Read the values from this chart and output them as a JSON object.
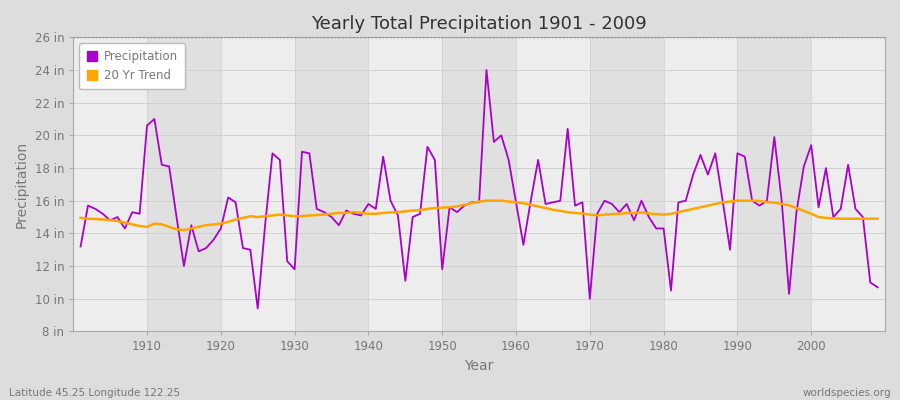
{
  "title": "Yearly Total Precipitation 1901 - 2009",
  "xlabel": "Year",
  "ylabel": "Precipitation",
  "start_year": 1901,
  "end_year": 2009,
  "ylim": [
    8,
    26
  ],
  "yticks": [
    8,
    10,
    12,
    14,
    16,
    18,
    20,
    22,
    24,
    26
  ],
  "ytick_labels": [
    "8 in",
    "10 in",
    "12 in",
    "14 in",
    "16 in",
    "18 in",
    "20 in",
    "22 in",
    "24 in",
    "26 in"
  ],
  "precipitation_color": "#AA00CC",
  "trend_color": "#FFA500",
  "background_color": "#DDDDDD",
  "plot_bg_color": "#E0E0E0",
  "grid_color_x": "#FFFFFF",
  "grid_color_y": "#CCCCCC",
  "title_color": "#333333",
  "axis_color": "#777777",
  "tick_color": "#777777",
  "precipitation_lw": 1.3,
  "trend_lw": 1.8,
  "footer_left": "Latitude 45.25 Longitude 122.25",
  "footer_right": "worldspecies.org",
  "xlim_left": 1900,
  "xlim_right": 2010,
  "precipitation": [
    13.2,
    15.7,
    15.5,
    15.2,
    14.8,
    15.0,
    14.3,
    15.3,
    15.2,
    20.6,
    21.0,
    18.2,
    18.1,
    15.0,
    12.0,
    14.5,
    12.9,
    13.1,
    13.6,
    14.3,
    16.2,
    15.9,
    13.1,
    13.0,
    9.4,
    14.5,
    18.9,
    18.5,
    12.3,
    11.8,
    19.0,
    18.9,
    15.5,
    15.3,
    15.0,
    14.5,
    15.4,
    15.2,
    15.1,
    15.8,
    15.5,
    18.7,
    16.0,
    15.1,
    11.1,
    15.0,
    15.2,
    19.3,
    18.5,
    11.8,
    15.6,
    15.3,
    15.7,
    15.9,
    15.9,
    24.0,
    19.6,
    20.0,
    18.5,
    15.9,
    13.3,
    16.0,
    18.5,
    15.8,
    15.9,
    16.0,
    20.4,
    15.7,
    15.9,
    10.0,
    15.2,
    16.0,
    15.8,
    15.3,
    15.8,
    14.8,
    16.0,
    15.0,
    14.3,
    14.3,
    10.5,
    15.9,
    16.0,
    17.6,
    18.8,
    17.6,
    18.9,
    16.0,
    13.0,
    18.9,
    18.7,
    16.0,
    15.7,
    16.0,
    19.9,
    16.0,
    10.3,
    15.3,
    18.1,
    19.4,
    15.6,
    18.0,
    15.0,
    15.5,
    18.2,
    15.5,
    15.0,
    11.0,
    10.7
  ],
  "trend": [
    14.95,
    14.9,
    14.88,
    14.85,
    14.82,
    14.75,
    14.65,
    14.55,
    14.45,
    14.4,
    14.6,
    14.55,
    14.4,
    14.25,
    14.2,
    14.3,
    14.4,
    14.5,
    14.55,
    14.6,
    14.7,
    14.85,
    14.95,
    15.05,
    15.0,
    15.05,
    15.1,
    15.15,
    15.1,
    15.05,
    15.05,
    15.1,
    15.12,
    15.15,
    15.2,
    15.25,
    15.25,
    15.3,
    15.25,
    15.2,
    15.2,
    15.25,
    15.28,
    15.3,
    15.35,
    15.4,
    15.42,
    15.5,
    15.55,
    15.58,
    15.6,
    15.65,
    15.75,
    15.85,
    15.95,
    16.0,
    16.0,
    16.0,
    15.95,
    15.9,
    15.85,
    15.75,
    15.65,
    15.55,
    15.45,
    15.38,
    15.3,
    15.25,
    15.22,
    15.15,
    15.1,
    15.15,
    15.18,
    15.2,
    15.25,
    15.25,
    15.28,
    15.22,
    15.18,
    15.15,
    15.2,
    15.3,
    15.4,
    15.5,
    15.6,
    15.7,
    15.8,
    15.9,
    15.95,
    16.0,
    16.0,
    16.0,
    15.98,
    15.92,
    15.88,
    15.8,
    15.72,
    15.55,
    15.38,
    15.2,
    15.0,
    14.95,
    14.92,
    14.9,
    14.9,
    14.9,
    14.9,
    14.9,
    14.9
  ]
}
